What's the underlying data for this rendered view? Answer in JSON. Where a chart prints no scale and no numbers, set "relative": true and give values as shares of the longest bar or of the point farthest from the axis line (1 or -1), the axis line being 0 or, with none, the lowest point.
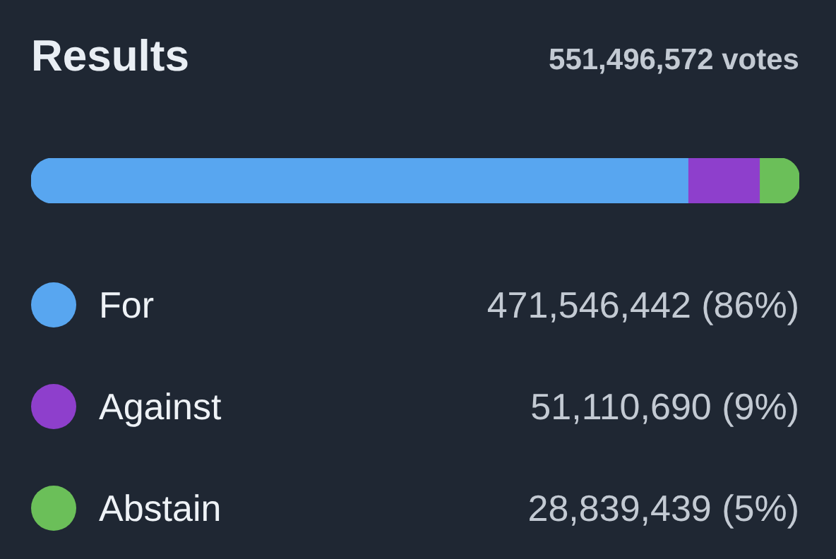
{
  "chart_data": {
    "type": "bar",
    "title": "Results",
    "subtitle": "551,496,572 votes",
    "orientation": "horizontal",
    "stacked": true,
    "relative": true,
    "categories": [
      null
    ],
    "legend": "bottom",
    "annotations": [
      "471,546,442 (86%)",
      "51,110,690 (9%)",
      "28,839,439 (5%)"
    ],
    "series": [
      {
        "name": "For",
        "color": "#58a6f0",
        "values": [
          0.855
        ]
      },
      {
        "name": "Against",
        "color": "#8e3fcc",
        "values": [
          0.093
        ]
      },
      {
        "name": "Abstain",
        "color": "#6bbf59",
        "values": [
          0.052
        ]
      }
    ]
  }
}
